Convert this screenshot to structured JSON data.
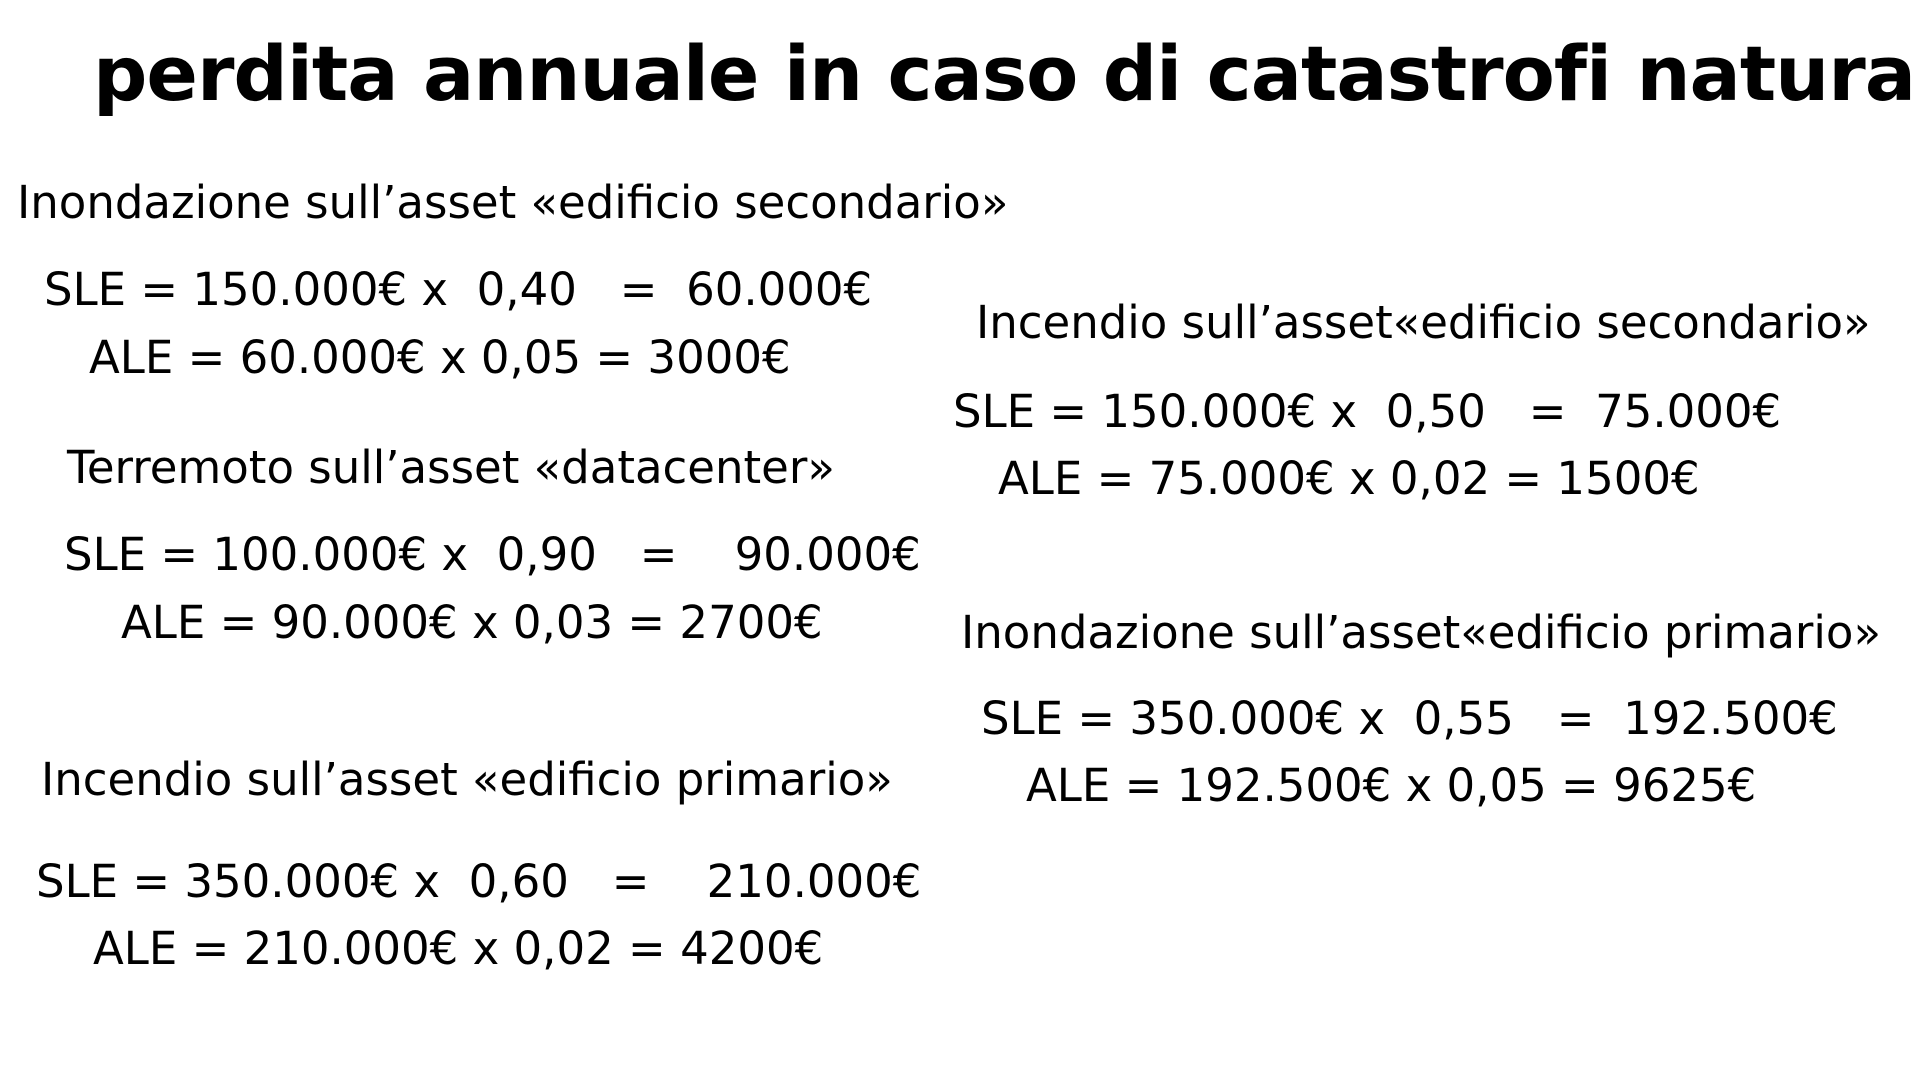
{
  "title": "perdita annuale in caso di catastrofi naturali:",
  "scenarios": [
    {
      "heading": "Inondazione sull’asset «edificio secondario»",
      "sle": "SLE = 150.000€ x  0,40   =  60.000€",
      "ale": "ALE = 60.000€ x 0,05 = 3000€"
    },
    {
      "heading": "Terremoto sull’asset «datacenter»",
      "sle": "SLE = 100.000€ x  0,90   =    90.000€",
      "ale": "ALE = 90.000€ x 0,03 = 2700€"
    },
    {
      "heading": "Incendio sull’asset «edificio primario»",
      "sle": "SLE = 350.000€ x  0,60   =    210.000€",
      "ale": "ALE = 210.000€ x 0,02 = 4200€"
    },
    {
      "heading": "Incendio sull’asset«edificio secondario»",
      "sle": "SLE = 150.000€ x  0,50   =  75.000€",
      "ale": "ALE = 75.000€ x 0,02 = 1500€"
    },
    {
      "heading": "Inondazione sull’asset«edificio primario»",
      "sle": "SLE = 350.000€ x  0,55   =  192.500€",
      "ale": "ALE = 192.500€ x 0,05 = 9625€"
    }
  ]
}
